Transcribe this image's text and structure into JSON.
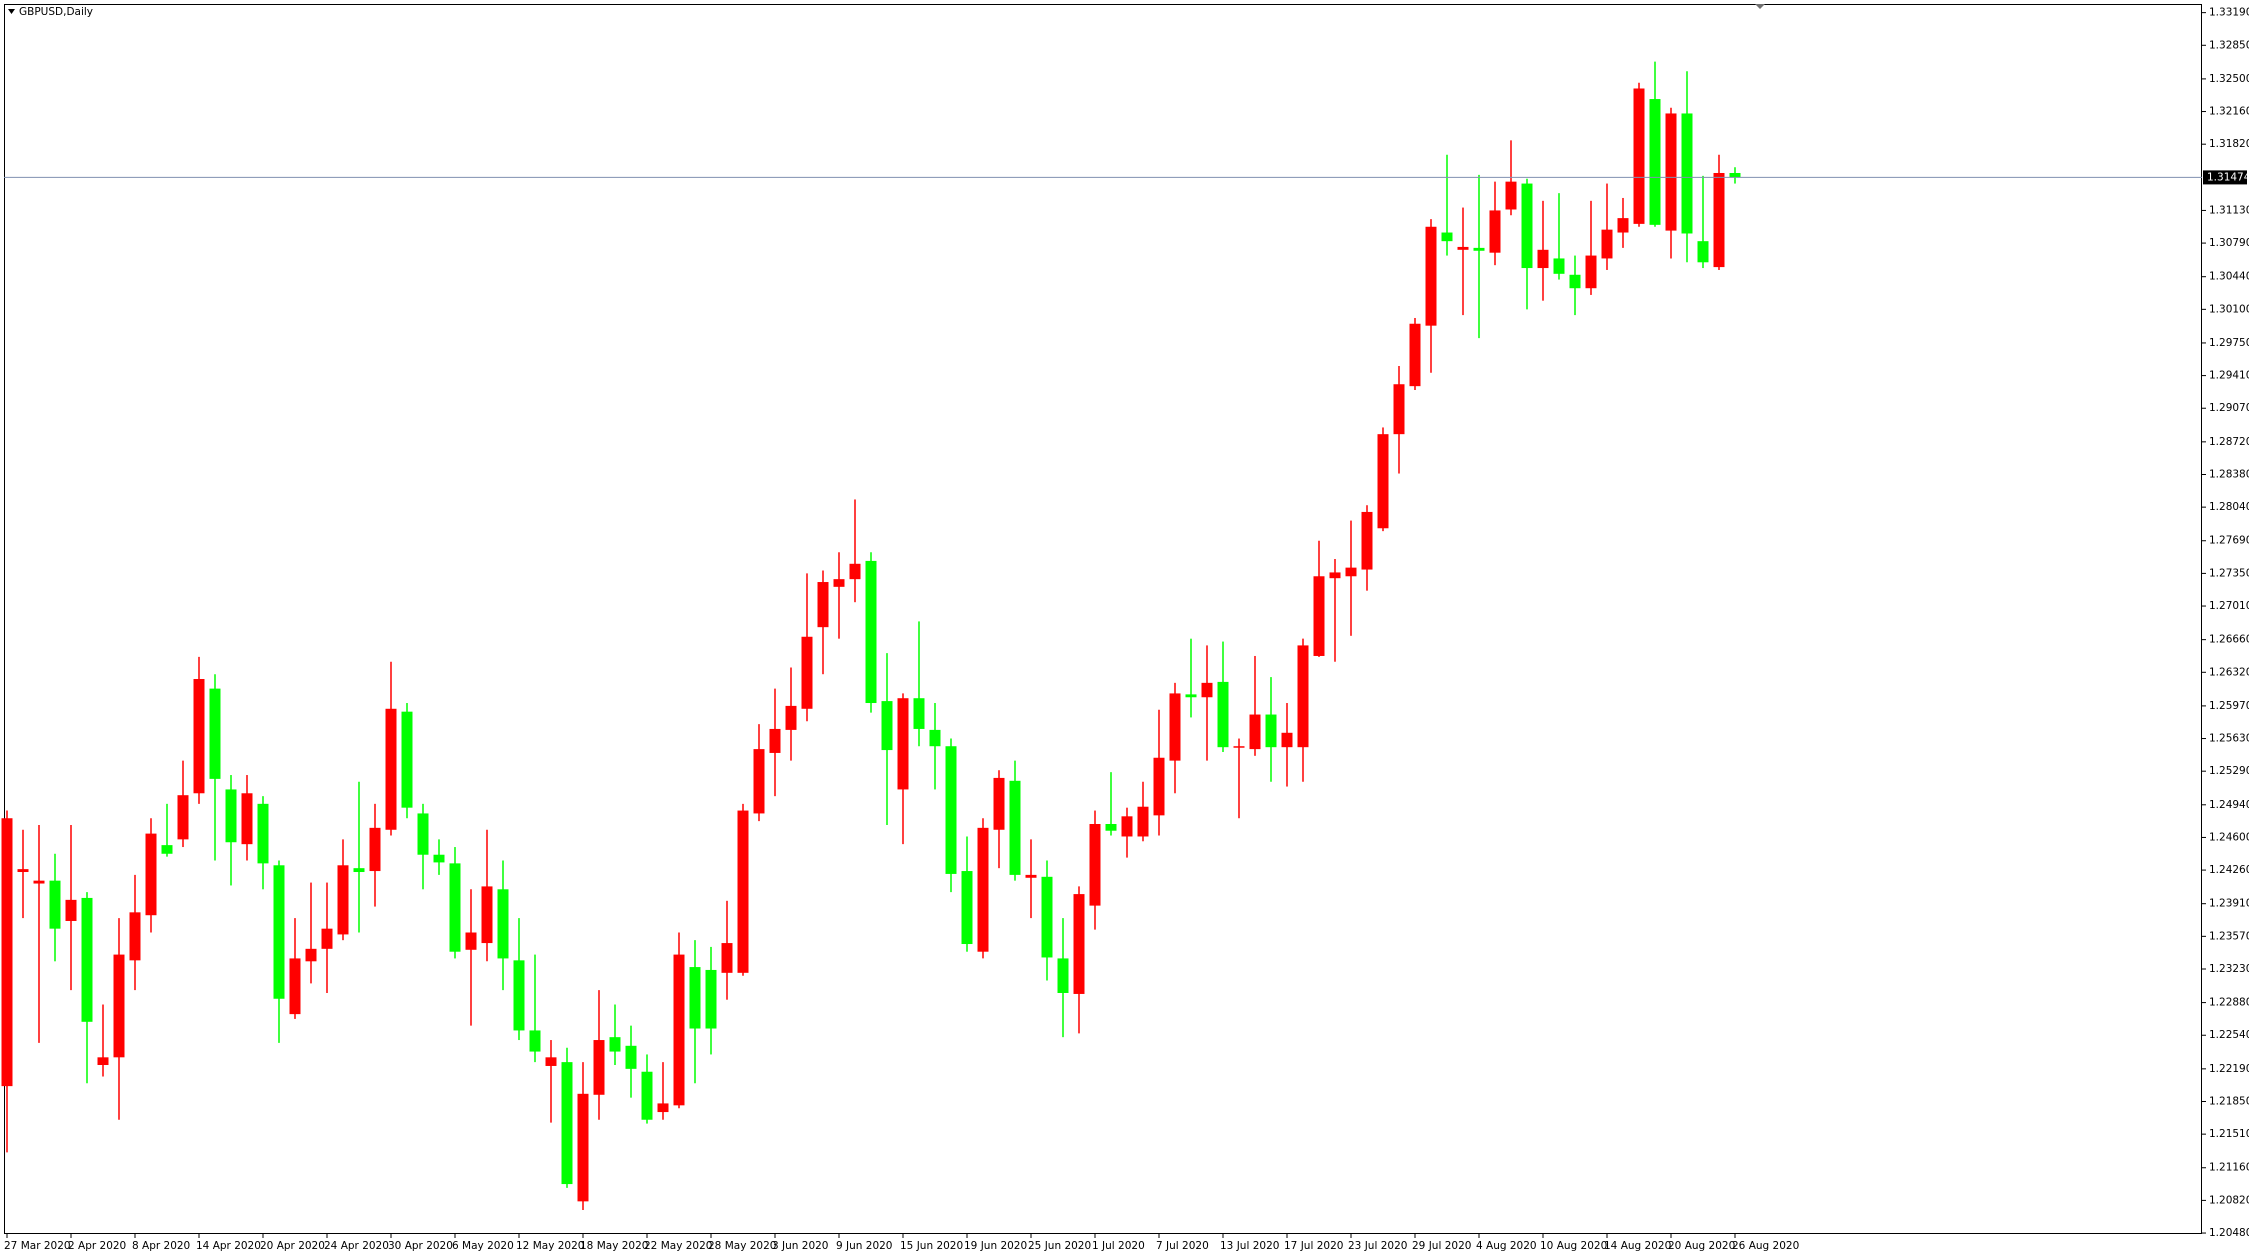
{
  "chart_data": {
    "type": "candlestick",
    "title": "GBPUSD,Daily",
    "categories": [
      "27 Mar 2020",
      null,
      null,
      null,
      "2 Apr 2020",
      null,
      null,
      null,
      "8 Apr 2020",
      null,
      null,
      null,
      "14 Apr 2020",
      null,
      null,
      null,
      "20 Apr 2020",
      null,
      null,
      null,
      "24 Apr 2020",
      null,
      null,
      null,
      "30 Apr 2020",
      null,
      null,
      null,
      "6 May 2020",
      null,
      null,
      null,
      "12 May 2020",
      null,
      null,
      null,
      "18 May 2020",
      null,
      null,
      null,
      "22 May 2020",
      null,
      null,
      null,
      "28 May 2020",
      null,
      null,
      null,
      "3 Jun 2020",
      null,
      null,
      null,
      "9 Jun 2020",
      null,
      null,
      null,
      "15 Jun 2020",
      null,
      null,
      null,
      "19 Jun 2020",
      null,
      null,
      null,
      "25 Jun 2020",
      null,
      null,
      null,
      "1 Jul 2020",
      null,
      null,
      null,
      "7 Jul 2020",
      null,
      null,
      null,
      "13 Jul 2020",
      null,
      null,
      null,
      "17 Jul 2020",
      null,
      null,
      null,
      "23 Jul 2020",
      null,
      null,
      null,
      "29 Jul 2020",
      null,
      null,
      null,
      "4 Aug 2020",
      null,
      null,
      null,
      "10 Aug 2020",
      null,
      null,
      null,
      "14 Aug 2020",
      null,
      null,
      null,
      "20 Aug 2020",
      null,
      null,
      null,
      "26 Aug 2020"
    ],
    "open": [
      1.2201,
      1.2424,
      1.2412,
      1.2415,
      1.2373,
      1.2397,
      1.2223,
      1.2231,
      1.2332,
      1.2379,
      1.2452,
      1.2458,
      1.2506,
      1.2615,
      1.251,
      1.2453,
      1.2495,
      1.2431,
      1.2276,
      1.2331,
      1.2344,
      1.2359,
      1.2428,
      1.2425,
      1.2468,
      1.2591,
      1.2485,
      1.2442,
      1.2433,
      1.2343,
      1.235,
      1.2406,
      1.2332,
      1.2259,
      1.2222,
      1.2226,
      1.2081,
      1.2192,
      1.2252,
      1.2243,
      1.2216,
      1.2174,
      1.2181,
      1.2325,
      1.2322,
      1.2319,
      1.2319,
      1.2485,
      1.2548,
      1.2572,
      1.2594,
      1.2679,
      1.2721,
      1.2729,
      1.2748,
      1.2602,
      1.251,
      1.2605,
      1.2572,
      1.2555,
      1.2425,
      1.2341,
      1.2468,
      1.2519,
      1.2418,
      1.2419,
      1.2334,
      1.2297,
      1.2389,
      1.2474,
      1.2461,
      1.2461,
      1.2483,
      1.254,
      1.2609,
      1.2606,
      1.2622,
      1.2554,
      1.2552,
      1.2588,
      1.2554,
      1.2554,
      1.2649,
      1.273,
      1.2732,
      1.2739,
      1.2782,
      1.288,
      1.293,
      1.2993,
      1.309,
      1.3072,
      1.3074,
      1.3069,
      1.3114,
      1.3141,
      1.3053,
      1.3063,
      1.3046,
      1.3032,
      1.3063,
      1.309,
      1.3099,
      1.3229,
      1.3092,
      1.3214,
      1.3081,
      1.3054,
      1.3152
    ],
    "high": [
      1.2488,
      1.2468,
      1.2473,
      1.2443,
      1.2473,
      1.2403,
      1.2286,
      1.2376,
      1.2421,
      1.248,
      1.2495,
      1.254,
      1.2648,
      1.263,
      1.2525,
      1.2525,
      1.2503,
      1.2436,
      1.2376,
      1.2413,
      1.2413,
      1.2458,
      1.2518,
      1.2495,
      1.2643,
      1.26,
      1.2495,
      1.2458,
      1.245,
      1.2406,
      1.2468,
      1.2436,
      1.2376,
      1.2338,
      1.2249,
      1.2241,
      1.2226,
      1.2301,
      1.2286,
      1.2264,
      1.2234,
      1.2226,
      1.2361,
      1.2353,
      1.2346,
      1.2394,
      1.2495,
      1.2578,
      1.2615,
      1.2637,
      1.2735,
      1.2738,
      1.2757,
      1.2812,
      1.2757,
      1.2652,
      1.261,
      1.2685,
      1.26,
      1.2563,
      1.2461,
      1.248,
      1.253,
      1.254,
      1.2458,
      1.2436,
      1.2376,
      1.2409,
      1.2488,
      1.2528,
      1.2491,
      1.2518,
      1.2593,
      1.2621,
      1.2667,
      1.266,
      1.2664,
      1.2563,
      1.2649,
      1.2627,
      1.26,
      1.2667,
      1.2769,
      1.275,
      1.279,
      1.2806,
      1.2887,
      1.2951,
      1.3001,
      1.3104,
      1.3171,
      1.3116,
      1.315,
      1.3143,
      1.3186,
      1.3146,
      1.3123,
      1.3131,
      1.3066,
      1.3123,
      1.3141,
      1.3126,
      1.3246,
      1.3268,
      1.322,
      1.3258,
      1.3149,
      1.3171,
      1.3158
    ],
    "low": [
      1.2132,
      1.2376,
      1.2246,
      1.2331,
      1.2301,
      1.2204,
      1.2211,
      1.2166,
      1.2301,
      1.2361,
      1.244,
      1.245,
      1.2495,
      1.2436,
      1.241,
      1.2436,
      1.2406,
      1.2246,
      1.2271,
      1.2308,
      1.2298,
      1.2353,
      1.2361,
      1.2388,
      1.2462,
      1.248,
      1.2406,
      1.2421,
      1.2334,
      1.2264,
      1.2331,
      1.2301,
      1.2249,
      1.2226,
      1.2163,
      1.2095,
      1.2072,
      1.2166,
      1.2223,
      1.2189,
      1.2162,
      1.2166,
      1.2178,
      1.2204,
      1.2234,
      1.2291,
      1.2316,
      1.2477,
      1.2503,
      1.254,
      1.2581,
      1.263,
      1.2667,
      1.2705,
      1.259,
      1.2473,
      1.2453,
      1.2555,
      1.251,
      1.2403,
      1.2341,
      1.2334,
      1.2428,
      1.2415,
      1.2376,
      1.2311,
      1.2252,
      1.2256,
      1.2364,
      1.2462,
      1.2439,
      1.2456,
      1.2462,
      1.2506,
      1.2585,
      1.254,
      1.2549,
      1.248,
      1.2545,
      1.2518,
      1.2513,
      1.2518,
      1.2648,
      1.2643,
      1.267,
      1.2717,
      1.2779,
      1.2839,
      1.2926,
      1.2944,
      1.3066,
      1.3004,
      1.298,
      1.3056,
      1.3108,
      1.301,
      1.3019,
      1.3041,
      1.3004,
      1.3025,
      1.3051,
      1.3074,
      1.3096,
      1.3096,
      1.3063,
      1.3059,
      1.3053,
      1.3051,
      1.3141
    ],
    "close": [
      1.248,
      1.2427,
      1.2415,
      1.2365,
      1.2395,
      1.2268,
      1.2231,
      1.2338,
      1.2382,
      1.2464,
      1.2443,
      1.2504,
      1.2625,
      1.2521,
      1.2455,
      1.2506,
      1.2433,
      1.2292,
      1.2334,
      1.2344,
      1.2365,
      1.2431,
      1.2424,
      1.247,
      1.2594,
      1.2491,
      1.2442,
      1.2434,
      1.2341,
      1.2361,
      1.2409,
      1.2334,
      1.2259,
      1.2237,
      1.2231,
      1.2099,
      1.2193,
      1.2249,
      1.2237,
      1.2219,
      1.2166,
      1.2183,
      1.2338,
      1.2261,
      1.2261,
      1.235,
      1.2488,
      1.2552,
      1.2573,
      1.2597,
      1.2669,
      1.2726,
      1.2729,
      1.2745,
      1.26,
      1.2551,
      1.2605,
      1.2573,
      1.2555,
      1.2422,
      1.2349,
      1.247,
      1.2522,
      1.2421,
      1.2421,
      1.2335,
      1.2298,
      1.2401,
      1.2474,
      1.2467,
      1.2482,
      1.2492,
      1.2543,
      1.261,
      1.2606,
      1.2621,
      1.2554,
      1.2555,
      1.2588,
      1.2554,
      1.2569,
      1.266,
      1.2732,
      1.2736,
      1.2741,
      1.2799,
      1.288,
      1.2932,
      1.2995,
      1.3096,
      1.3081,
      1.3075,
      1.3071,
      1.3113,
      1.3143,
      1.3053,
      1.3072,
      1.3047,
      1.3032,
      1.3066,
      1.3093,
      1.3105,
      1.324,
      1.3098,
      1.3214,
      1.3089,
      1.3059,
      1.3152,
      1.31474
    ],
    "up_color": "#ff0000",
    "down_color": "#00ff00",
    "last_price": 1.31474,
    "last_price_color": "#8090b0",
    "ylim": [
      1.2047,
      1.3328
    ],
    "yticks": [
      {
        "value": 1.3319,
        "label": "1.33190"
      },
      {
        "value": 1.3285,
        "label": "1.32850"
      },
      {
        "value": 1.325,
        "label": "1.32500"
      },
      {
        "value": 1.3216,
        "label": "1.32160"
      },
      {
        "value": 1.3182,
        "label": "1.31820"
      },
      {
        "value": 1.3113,
        "label": "1.31130"
      },
      {
        "value": 1.3079,
        "label": "1.30790"
      },
      {
        "value": 1.3044,
        "label": "1.30440"
      },
      {
        "value": 1.301,
        "label": "1.30100"
      },
      {
        "value": 1.2975,
        "label": "1.29750"
      },
      {
        "value": 1.2941,
        "label": "1.29410"
      },
      {
        "value": 1.2907,
        "label": "1.29070"
      },
      {
        "value": 1.2872,
        "label": "1.28720"
      },
      {
        "value": 1.2838,
        "label": "1.28380"
      },
      {
        "value": 1.2804,
        "label": "1.28040"
      },
      {
        "value": 1.2769,
        "label": "1.27690"
      },
      {
        "value": 1.2735,
        "label": "1.27350"
      },
      {
        "value": 1.2701,
        "label": "1.27010"
      },
      {
        "value": 1.2666,
        "label": "1.26660"
      },
      {
        "value": 1.2632,
        "label": "1.26320"
      },
      {
        "value": 1.2597,
        "label": "1.25970"
      },
      {
        "value": 1.2563,
        "label": "1.25630"
      },
      {
        "value": 1.2529,
        "label": "1.25290"
      },
      {
        "value": 1.2494,
        "label": "1.24940"
      },
      {
        "value": 1.246,
        "label": "1.24600"
      },
      {
        "value": 1.2426,
        "label": "1.24260"
      },
      {
        "value": 1.2391,
        "label": "1.23910"
      },
      {
        "value": 1.2357,
        "label": "1.23570"
      },
      {
        "value": 1.2323,
        "label": "1.23230"
      },
      {
        "value": 1.2288,
        "label": "1.22880"
      },
      {
        "value": 1.2254,
        "label": "1.22540"
      },
      {
        "value": 1.2219,
        "label": "1.22190"
      },
      {
        "value": 1.2185,
        "label": "1.21850"
      },
      {
        "value": 1.2151,
        "label": "1.21510"
      },
      {
        "value": 1.2116,
        "label": "1.21160"
      },
      {
        "value": 1.2082,
        "label": "1.20820"
      },
      {
        "value": 1.2048,
        "label": "1.20480"
      }
    ],
    "grid": false
  }
}
